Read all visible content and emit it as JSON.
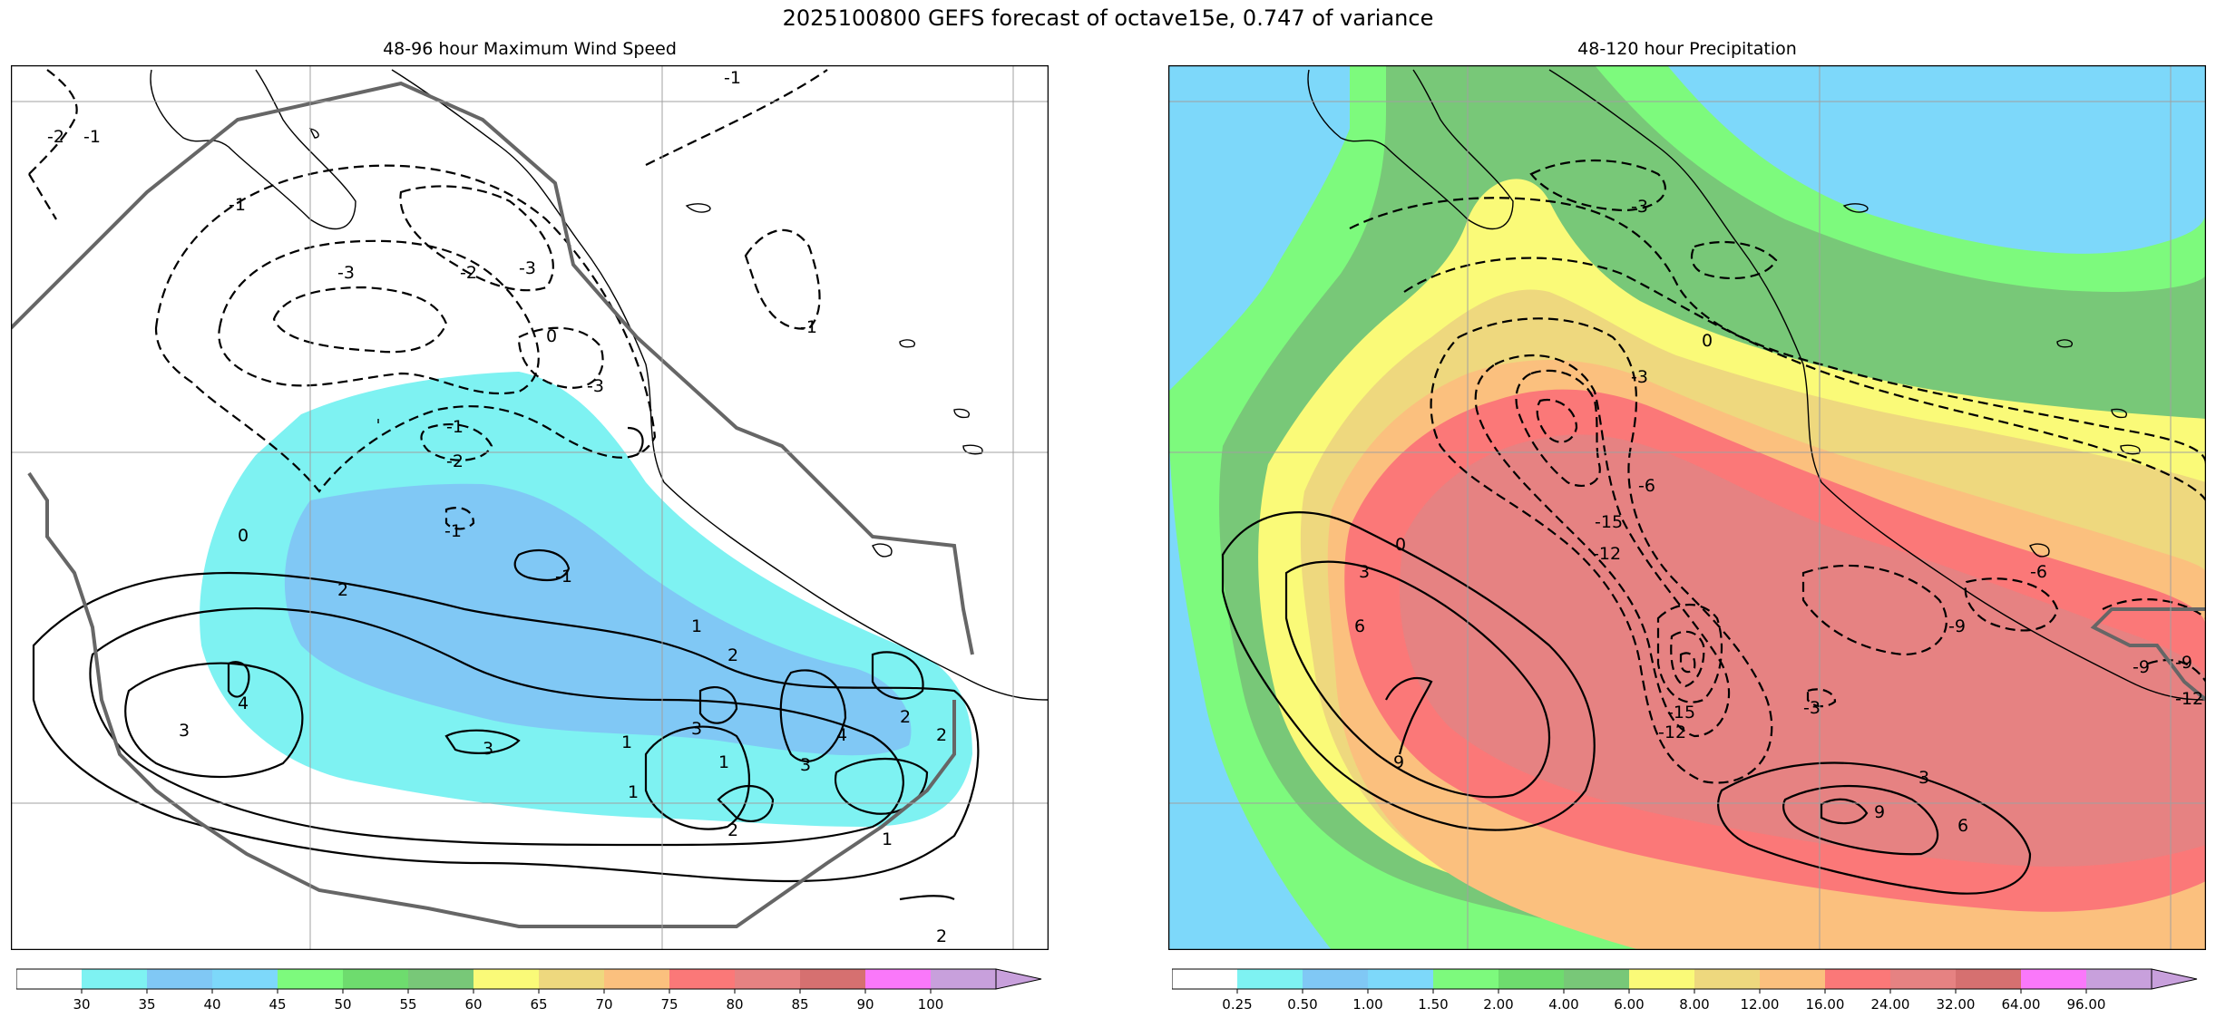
{
  "figure_title": "2025100800 GEFS forecast of octave15e, 0.747 of variance",
  "panels": [
    {
      "title": "48-96 hour Maximum Wind Speed",
      "field": "wind",
      "contour_labels": [
        {
          "text": "-1"
        },
        {
          "text": "-2"
        },
        {
          "text": "-1"
        },
        {
          "text": "-1"
        },
        {
          "text": "-3"
        },
        {
          "text": "-2"
        },
        {
          "text": "-3"
        },
        {
          "text": "-3"
        },
        {
          "text": "0"
        },
        {
          "text": "-1"
        },
        {
          "text": "-1"
        },
        {
          "text": "-2"
        },
        {
          "text": "-1"
        },
        {
          "text": "0"
        },
        {
          "text": "-1"
        },
        {
          "text": "2"
        },
        {
          "text": "1"
        },
        {
          "text": "1"
        },
        {
          "text": "2"
        },
        {
          "text": "4"
        },
        {
          "text": "3"
        },
        {
          "text": "3"
        },
        {
          "text": "1"
        },
        {
          "text": "3"
        },
        {
          "text": "1"
        },
        {
          "text": "3"
        },
        {
          "text": "4"
        },
        {
          "text": "2"
        },
        {
          "text": "2"
        },
        {
          "text": "2"
        },
        {
          "text": "1"
        },
        {
          "text": "2"
        }
      ]
    },
    {
      "title": "48-120 hour Precipitation",
      "field": "precip",
      "contour_labels": [
        {
          "text": "-3"
        },
        {
          "text": "0"
        },
        {
          "text": "-3"
        },
        {
          "text": "0"
        },
        {
          "text": "-6"
        },
        {
          "text": "-15"
        },
        {
          "text": "-12"
        },
        {
          "text": "-6"
        },
        {
          "text": "-9"
        },
        {
          "text": "-15"
        },
        {
          "text": "-12"
        },
        {
          "text": "-3"
        },
        {
          "text": "3"
        },
        {
          "text": "6"
        },
        {
          "text": "9"
        },
        {
          "text": "-9"
        },
        {
          "text": "-9"
        },
        {
          "text": "-12"
        },
        {
          "text": "3"
        },
        {
          "text": "9"
        },
        {
          "text": "6"
        }
      ]
    }
  ],
  "colorbars": [
    {
      "name": "wind",
      "colors": [
        "#ffffff",
        "#7ef2f2",
        "#80c8f5",
        "#7dd8fa",
        "#7dfa7d",
        "#6edc6e",
        "#78c878",
        "#fafa78",
        "#eed87e",
        "#fbc07e",
        "#fb7878",
        "#e68282",
        "#d67070",
        "#fa78fa",
        "#c8a0dc"
      ],
      "ticks": [
        "30",
        "35",
        "40",
        "45",
        "50",
        "55",
        "60",
        "65",
        "70",
        "75",
        "80",
        "85",
        "90",
        "100"
      ]
    },
    {
      "name": "precip",
      "colors": [
        "#ffffff",
        "#7ef2f2",
        "#80c8f5",
        "#7dd8fa",
        "#7dfa7d",
        "#6edc6e",
        "#78c878",
        "#fafa78",
        "#eed87e",
        "#fbc07e",
        "#fb7878",
        "#e68282",
        "#d67070",
        "#fa78fa",
        "#c8a0dc"
      ],
      "ticks": [
        "0.25",
        "0.50",
        "1.00",
        "1.50",
        "2.00",
        "4.00",
        "6.00",
        "8.00",
        "12.00",
        "16.00",
        "24.00",
        "32.00",
        "64.00",
        "96.00"
      ]
    }
  ]
}
